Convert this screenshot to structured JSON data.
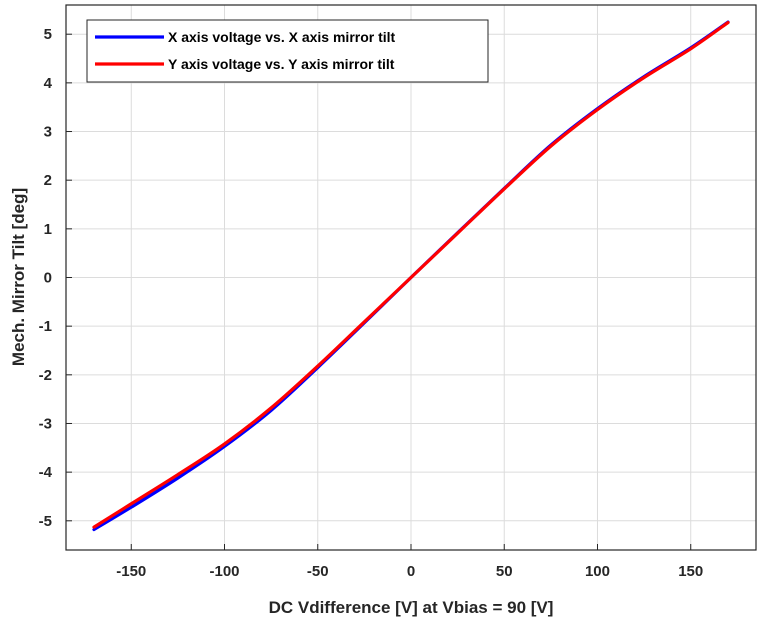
{
  "chart_data": {
    "type": "line",
    "title": "",
    "xlabel": "DC Vdifference [V] at Vbias = 90 [V]",
    "ylabel": "Mech. Mirror Tilt [deg]",
    "xlim": [
      -185,
      185
    ],
    "ylim": [
      -5.6,
      5.6
    ],
    "xticks": [
      -150,
      -100,
      -50,
      0,
      50,
      100,
      150
    ],
    "yticks": [
      -5,
      -4,
      -3,
      -2,
      -1,
      0,
      1,
      2,
      3,
      4,
      5
    ],
    "xtick_labels": [
      "-150",
      "-100",
      "-50",
      "0",
      "50",
      "100",
      "150"
    ],
    "ytick_labels": [
      "-5",
      "-4",
      "-3",
      "-2",
      "-1",
      "0",
      "1",
      "2",
      "3",
      "4",
      "5"
    ],
    "grid": true,
    "legend_position": "top-left",
    "series": [
      {
        "name": "X axis voltage vs. X axis mirror tilt",
        "color": "#0000ff",
        "x": [
          -170,
          -150,
          -125,
          -100,
          -75,
          -50,
          -25,
          0,
          25,
          50,
          75,
          100,
          125,
          150,
          170
        ],
        "values": [
          -5.18,
          -4.72,
          -4.12,
          -3.47,
          -2.73,
          -1.85,
          -0.93,
          0.0,
          0.92,
          1.83,
          2.72,
          3.47,
          4.13,
          4.72,
          5.25
        ]
      },
      {
        "name": "Y axis voltage vs. Y axis mirror tilt",
        "color": "#ff0000",
        "x": [
          -170,
          -150,
          -125,
          -100,
          -75,
          -50,
          -25,
          0,
          25,
          50,
          75,
          100,
          125,
          150,
          170
        ],
        "values": [
          -5.13,
          -4.65,
          -4.05,
          -3.42,
          -2.68,
          -1.82,
          -0.91,
          0.0,
          0.91,
          1.82,
          2.7,
          3.45,
          4.11,
          4.7,
          5.24
        ]
      }
    ]
  }
}
